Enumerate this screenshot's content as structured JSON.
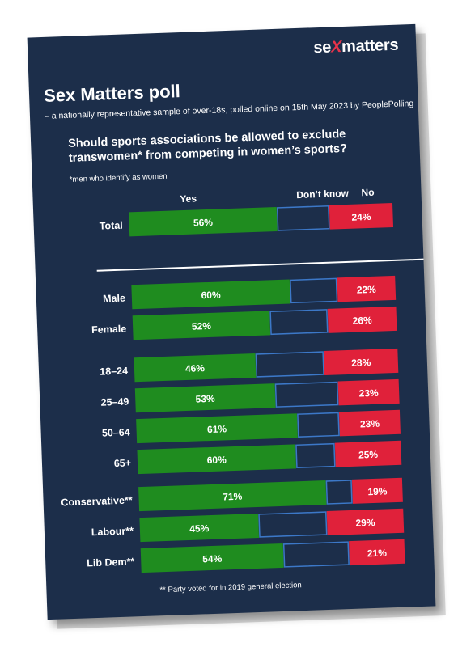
{
  "logo": {
    "prefix": "se",
    "x": "X",
    "suffix": "matters"
  },
  "title": "Sex Matters poll",
  "subtitle": "– a nationally representative sample of over-18s, polled online on 15th May 2023 by PeoplePolling",
  "question": "Should sports associations be allowed to exclude transwomen* from competing in women’s sports?",
  "footnote_men": "*men who identify as women",
  "footnote_party": "** Party voted for in 2019 general election",
  "colors": {
    "yes": "#1f8c1f",
    "dont_know": "#1c2e4a",
    "dont_know_border": "#3c78c8",
    "no": "#e0213a",
    "background": "#1c2e4a"
  },
  "chart_data": {
    "type": "bar",
    "orientation": "horizontal",
    "stacked": true,
    "series_names": [
      "Yes",
      "Don’t know",
      "No"
    ],
    "groups": [
      {
        "rows": [
          {
            "label": "Total",
            "yes": 56,
            "dont_know": 20,
            "no": 24,
            "yes_label": "56%",
            "no_label": "24%"
          }
        ]
      },
      {
        "rows": [
          {
            "label": "Male",
            "yes": 60,
            "dont_know": 18,
            "no": 22,
            "yes_label": "60%",
            "no_label": "22%"
          },
          {
            "label": "Female",
            "yes": 52,
            "dont_know": 22,
            "no": 26,
            "yes_label": "52%",
            "no_label": "26%"
          }
        ]
      },
      {
        "rows": [
          {
            "label": "18–24",
            "yes": 46,
            "dont_know": 26,
            "no": 28,
            "yes_label": "46%",
            "no_label": "28%"
          },
          {
            "label": "25–49",
            "yes": 53,
            "dont_know": 24,
            "no": 23,
            "yes_label": "53%",
            "no_label": "23%"
          },
          {
            "label": "50–64",
            "yes": 61,
            "dont_know": 16,
            "no": 23,
            "yes_label": "61%",
            "no_label": "23%"
          },
          {
            "label": "65+",
            "yes": 60,
            "dont_know": 15,
            "no": 25,
            "yes_label": "60%",
            "no_label": "25%"
          }
        ]
      },
      {
        "rows": [
          {
            "label": "Conservative**",
            "yes": 71,
            "dont_know": 10,
            "no": 19,
            "yes_label": "71%",
            "no_label": "19%"
          },
          {
            "label": "Labour**",
            "yes": 45,
            "dont_know": 26,
            "no": 29,
            "yes_label": "45%",
            "no_label": "29%"
          },
          {
            "label": "Lib Dem**",
            "yes": 54,
            "dont_know": 25,
            "no": 21,
            "yes_label": "54%",
            "no_label": "21%"
          }
        ]
      }
    ]
  }
}
